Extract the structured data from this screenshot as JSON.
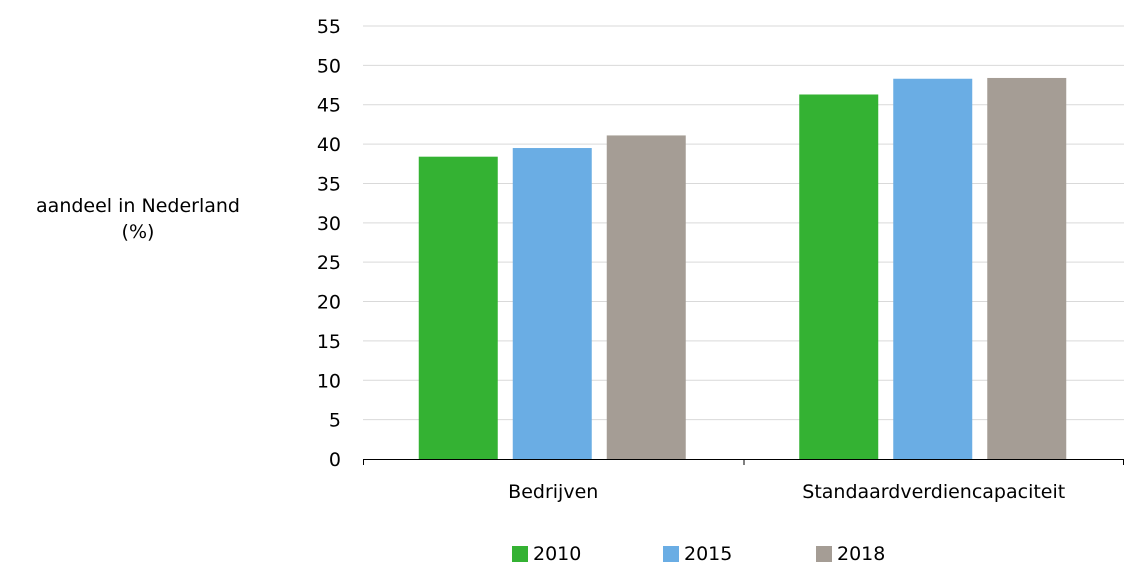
{
  "chart_data": {
    "type": "bar",
    "categories": [
      "Bedrijven",
      "Standaardverdiencapaciteit"
    ],
    "series": [
      {
        "name": "2010",
        "values": [
          38.4,
          46.3
        ],
        "color": "#34b233"
      },
      {
        "name": "2015",
        "values": [
          39.5,
          48.3
        ],
        "color": "#6aade4"
      },
      {
        "name": "2018",
        "values": [
          41.1,
          48.4
        ],
        "color": "#a59d95"
      }
    ],
    "title": "",
    "xlabel": "",
    "ylabel_lines": [
      "aandeel in Nederland",
      "(%)"
    ],
    "ylim": [
      0,
      55
    ],
    "yticks": [
      0,
      5,
      10,
      15,
      20,
      25,
      30,
      35,
      40,
      45,
      50,
      55
    ],
    "grid": true,
    "legend_position": "bottom"
  }
}
